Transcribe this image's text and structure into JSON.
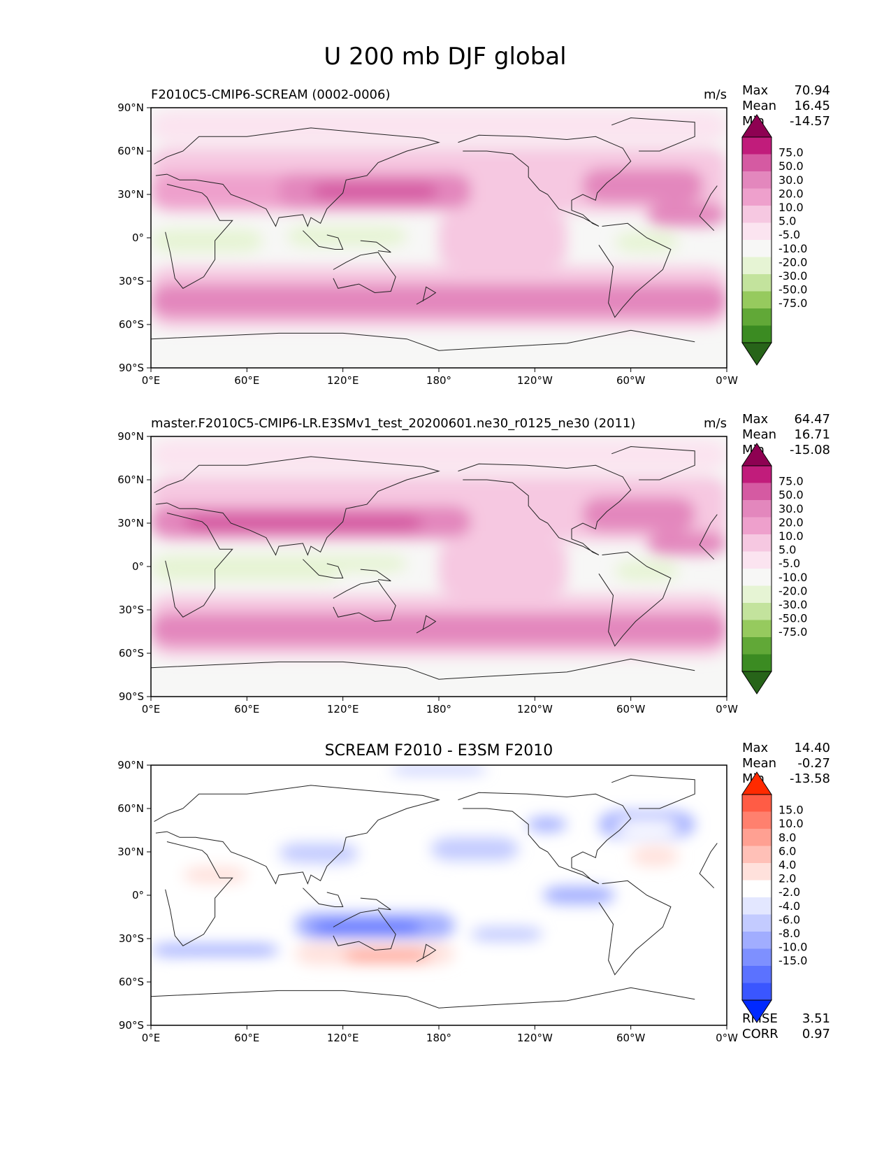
{
  "figure": {
    "title": "U 200 mb DJF global"
  },
  "colors": {
    "piyg": [
      "#276419",
      "#3b8b22",
      "#61a837",
      "#96ca5e",
      "#c3e39d",
      "#e6f4d4",
      "#f7f7f6",
      "#fbe4f0",
      "#f6c8e1",
      "#eea0cc",
      "#e387bd",
      "#d55aa2",
      "#c11c7b",
      "#8e0152"
    ],
    "bwr": [
      "#0029ff",
      "#3a56ff",
      "#5b72ff",
      "#7e90ff",
      "#a1adff",
      "#c3cbff",
      "#e3e7ff",
      "#ffffff",
      "#ffe1dc",
      "#ffc0b7",
      "#ffa092",
      "#ff806e",
      "#ff5c45",
      "#ff2a00"
    ]
  },
  "chart_data": [
    {
      "type": "heatmap",
      "name": "test",
      "title": "F2010C5-CMIP6-SCREAM (0002-0006)",
      "units": "m/s",
      "stats": {
        "max_label": "Max",
        "max": "70.94",
        "mean_label": "Mean",
        "mean": "16.45",
        "min_label": "Min",
        "min": "-14.57"
      },
      "levels": [
        "-75.0",
        "-50.0",
        "-30.0",
        "-20.0",
        "-10.0",
        "-5.0",
        "5.0",
        "10.0",
        "20.0",
        "30.0",
        "50.0",
        "75.0"
      ],
      "x_ticks": [
        "0°E",
        "60°E",
        "120°E",
        "180°",
        "120°W",
        "60°W",
        "0°W"
      ],
      "y_ticks": [
        "90°N",
        "60°N",
        "30°N",
        "0°",
        "30°S",
        "60°S",
        "90°S"
      ],
      "xlim": [
        0,
        360
      ],
      "ylim": [
        -90,
        90
      ],
      "regions": [
        {
          "lon": [
            0,
            360
          ],
          "lat": [
            18,
            62
          ],
          "value": 12
        },
        {
          "lon": [
            0,
            360
          ],
          "lat": [
            -62,
            -20
          ],
          "value": 12
        },
        {
          "lon": [
            0,
            140
          ],
          "lat": [
            20,
            45
          ],
          "value": 25
        },
        {
          "lon": [
            80,
            200
          ],
          "lat": [
            20,
            45
          ],
          "value": 35
        },
        {
          "lon": [
            100,
            180
          ],
          "lat": [
            26,
            38
          ],
          "value": 55
        },
        {
          "lon": [
            270,
            345
          ],
          "lat": [
            24,
            48
          ],
          "value": 35
        },
        {
          "lon": [
            310,
            360
          ],
          "lat": [
            8,
            24
          ],
          "value": 35
        },
        {
          "lon": [
            0,
            360
          ],
          "lat": [
            -55,
            -32
          ],
          "value": 35
        },
        {
          "lon": [
            180,
            260
          ],
          "lat": [
            -20,
            18
          ],
          "value": 15
        },
        {
          "lon": [
            0,
            70
          ],
          "lat": [
            -10,
            6
          ],
          "value": -8
        },
        {
          "lon": [
            85,
            160
          ],
          "lat": [
            -6,
            8
          ],
          "value": -8
        },
        {
          "lon": [
            290,
            330
          ],
          "lat": [
            -10,
            4
          ],
          "value": -8
        },
        {
          "lon": [
            0,
            360
          ],
          "lat": [
            66,
            88
          ],
          "value": 6
        }
      ]
    },
    {
      "type": "heatmap",
      "name": "reference",
      "title": "master.F2010C5-CMIP6-LR.E3SMv1_test_20200601.ne30_r0125_ne30 (2011)",
      "units": "m/s",
      "stats": {
        "max_label": "Max",
        "max": "64.47",
        "mean_label": "Mean",
        "mean": "16.71",
        "min_label": "Min",
        "min": "-15.08"
      },
      "levels": [
        "-75.0",
        "-50.0",
        "-30.0",
        "-20.0",
        "-10.0",
        "-5.0",
        "5.0",
        "10.0",
        "20.0",
        "30.0",
        "50.0",
        "75.0"
      ],
      "x_ticks": [
        "0°E",
        "60°E",
        "120°E",
        "180°",
        "120°W",
        "60°W",
        "0°W"
      ],
      "y_ticks": [
        "90°N",
        "60°N",
        "30°N",
        "0°",
        "30°S",
        "60°S",
        "90°S"
      ],
      "xlim": [
        0,
        360
      ],
      "ylim": [
        -90,
        90
      ],
      "regions": [
        {
          "lon": [
            0,
            360
          ],
          "lat": [
            18,
            62
          ],
          "value": 12
        },
        {
          "lon": [
            0,
            360
          ],
          "lat": [
            -62,
            -20
          ],
          "value": 12
        },
        {
          "lon": [
            0,
            200
          ],
          "lat": [
            20,
            42
          ],
          "value": 35
        },
        {
          "lon": [
            20,
            170
          ],
          "lat": [
            24,
            36
          ],
          "value": 55
        },
        {
          "lon": [
            270,
            340
          ],
          "lat": [
            24,
            48
          ],
          "value": 35
        },
        {
          "lon": [
            310,
            360
          ],
          "lat": [
            8,
            24
          ],
          "value": 35
        },
        {
          "lon": [
            0,
            360
          ],
          "lat": [
            -55,
            -32
          ],
          "value": 35
        },
        {
          "lon": [
            180,
            260
          ],
          "lat": [
            -20,
            18
          ],
          "value": 15
        },
        {
          "lon": [
            0,
            120
          ],
          "lat": [
            -10,
            8
          ],
          "value": -8
        },
        {
          "lon": [
            90,
            160
          ],
          "lat": [
            -4,
            8
          ],
          "value": -8
        },
        {
          "lon": [
            290,
            330
          ],
          "lat": [
            -10,
            4
          ],
          "value": -8
        },
        {
          "lon": [
            0,
            360
          ],
          "lat": [
            66,
            88
          ],
          "value": 6
        }
      ]
    },
    {
      "type": "heatmap",
      "name": "difference",
      "title": "SCREAM F2010 - E3SM F2010",
      "units": "",
      "stats": {
        "max_label": "Max",
        "max": "14.40",
        "mean_label": "Mean",
        "mean": "-0.27",
        "min_label": "Min",
        "min": "-13.58",
        "rmse_label": "RMSE",
        "rmse": "3.51",
        "corr_label": "CORR",
        "corr": "0.97"
      },
      "levels": [
        "-15.0",
        "-10.0",
        "-8.0",
        "-6.0",
        "-4.0",
        "-2.0",
        "2.0",
        "4.0",
        "6.0",
        "8.0",
        "10.0",
        "15.0"
      ],
      "x_ticks": [
        "0°E",
        "60°E",
        "120°E",
        "180°",
        "120°W",
        "60°W",
        "0°W"
      ],
      "y_ticks": [
        "90°N",
        "60°N",
        "30°N",
        "0°",
        "30°S",
        "60°S",
        "90°S"
      ],
      "xlim": [
        0,
        360
      ],
      "ylim": [
        -90,
        90
      ],
      "regions": [
        {
          "lon": [
            0,
            100
          ],
          "lat": [
            4,
            26
          ],
          "value": 3
        },
        {
          "lon": [
            20,
            60
          ],
          "lat": [
            8,
            20
          ],
          "value": 5
        },
        {
          "lon": [
            120,
            160
          ],
          "lat": [
            28,
            42
          ],
          "value": 4
        },
        {
          "lon": [
            80,
            130
          ],
          "lat": [
            22,
            36
          ],
          "value": -3
        },
        {
          "lon": [
            175,
            230
          ],
          "lat": [
            24,
            40
          ],
          "value": -3
        },
        {
          "lon": [
            235,
            260
          ],
          "lat": [
            44,
            54
          ],
          "value": -5
        },
        {
          "lon": [
            280,
            340
          ],
          "lat": [
            40,
            58
          ],
          "value": -4
        },
        {
          "lon": [
            300,
            330
          ],
          "lat": [
            20,
            34
          ],
          "value": 5
        },
        {
          "lon": [
            90,
            190
          ],
          "lat": [
            -30,
            -12
          ],
          "value": -5
        },
        {
          "lon": [
            100,
            170
          ],
          "lat": [
            -27,
            -18
          ],
          "value": -9
        },
        {
          "lon": [
            90,
            190
          ],
          "lat": [
            -48,
            -33
          ],
          "value": 5
        },
        {
          "lon": [
            120,
            175
          ],
          "lat": [
            -46,
            -38
          ],
          "value": 10
        },
        {
          "lon": [
            0,
            80
          ],
          "lat": [
            -42,
            -34
          ],
          "value": -4
        },
        {
          "lon": [
            200,
            245
          ],
          "lat": [
            -32,
            -22
          ],
          "value": -3
        },
        {
          "lon": [
            245,
            290
          ],
          "lat": [
            -6,
            6
          ],
          "value": -4
        },
        {
          "lon": [
            205,
            335
          ],
          "lat": [
            -48,
            -38
          ],
          "value": 4
        },
        {
          "lon": [
            20,
            80
          ],
          "lat": [
            -62,
            -52
          ],
          "value": 3
        },
        {
          "lon": [
            195,
            225
          ],
          "lat": [
            -4,
            6
          ],
          "value": 3
        },
        {
          "lon": [
            290,
            330
          ],
          "lat": [
            42,
            52
          ],
          "value": 3
        },
        {
          "lon": [
            150,
            210
          ],
          "lat": [
            84,
            90
          ],
          "value": -3
        },
        {
          "lon": [
            20,
            40
          ],
          "lat": [
            68,
            78
          ],
          "value": 3
        }
      ]
    }
  ]
}
